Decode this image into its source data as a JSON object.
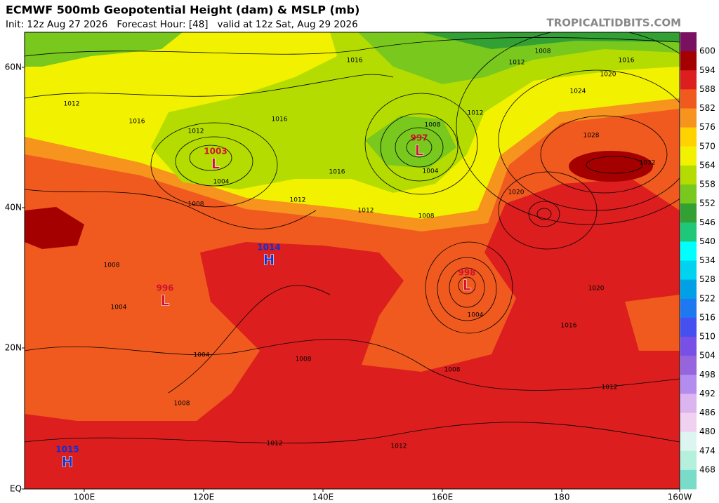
{
  "header": {
    "title": "ECMWF 500mb Geopotential Height (dam) & MSLP (mb)",
    "subtitle": "Init: 12z Aug 27 2026   Forecast Hour: [48]   valid at 12z Sat, Aug 29 2026",
    "source": "TROPICALTIDBITS.COM"
  },
  "axes": {
    "lat_labels": [
      "60N",
      "40N",
      "20N",
      "EQ"
    ],
    "lon_labels": [
      "100E",
      "120E",
      "140E",
      "160E",
      "180",
      "160W"
    ]
  },
  "colorbar": {
    "levels": [
      600,
      594,
      588,
      582,
      576,
      570,
      564,
      558,
      552,
      546,
      540,
      534,
      528,
      522,
      516,
      510,
      504,
      498,
      492,
      486,
      480,
      474,
      468
    ],
    "colors": [
      "#7a1060",
      "#a50000",
      "#dc1e1e",
      "#f05a1e",
      "#f7941d",
      "#ffd200",
      "#f2f200",
      "#b4dc00",
      "#78c81e",
      "#32a032",
      "#1ec878",
      "#00ffff",
      "#00d2f0",
      "#00a0e6",
      "#1e78f0",
      "#4650f0",
      "#7850e6",
      "#9664dc",
      "#b48cf0",
      "#dcb4f0",
      "#f0d2f0",
      "#dcf5f0",
      "#b4f0dc",
      "#78dcc8"
    ]
  },
  "centers": [
    {
      "type": "H",
      "pressure": 1014
    },
    {
      "type": "L",
      "pressure": 1003
    },
    {
      "type": "L",
      "pressure": 997
    },
    {
      "type": "L",
      "pressure": 998
    },
    {
      "type": "L",
      "pressure": 996
    },
    {
      "type": "H",
      "pressure": 1015
    }
  ],
  "isobar_labels": [
    1016,
    1012,
    1008,
    1016,
    1020,
    1024,
    1028,
    1032,
    1020,
    1012,
    1008,
    1004,
    1008,
    1012,
    1012,
    1008,
    1004,
    1016,
    1016,
    1012,
    1016,
    1012,
    1008,
    1004,
    1004,
    1008,
    1008,
    1004,
    1016,
    1020,
    1012,
    1008,
    1012,
    1012
  ]
}
